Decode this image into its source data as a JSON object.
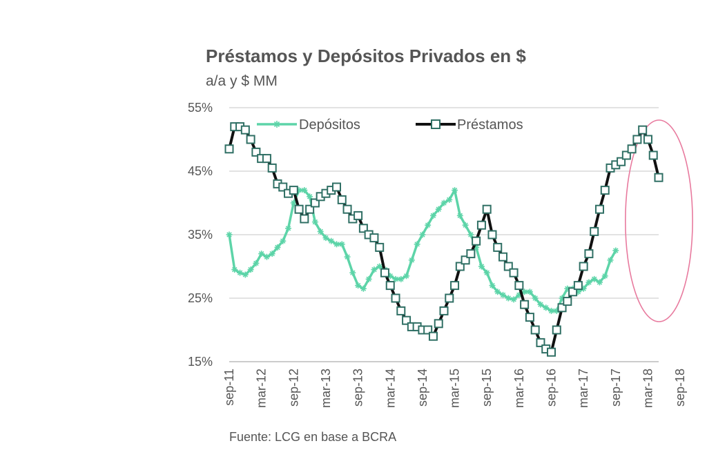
{
  "chart_data": {
    "type": "line",
    "title": "Préstamos y Depósitos Privados en $",
    "subtitle": "a/a  y $ MM",
    "source": "Fuente: LCG en base a BCRA",
    "ylim": [
      15,
      55
    ],
    "yticks": [
      15,
      25,
      35,
      45,
      55
    ],
    "ytick_labels": [
      "15%",
      "25%",
      "35%",
      "45%",
      "55%"
    ],
    "x_tick_labels": [
      "sep-11",
      "mar-12",
      "sep-12",
      "mar-13",
      "sep-13",
      "mar-14",
      "sep-14",
      "mar-15",
      "sep-15",
      "mar-16",
      "sep-16",
      "mar-17",
      "sep-17",
      "mar-18",
      "sep-18"
    ],
    "x_tick_every": 6,
    "grid": true,
    "legend_position": "top-left",
    "highlight": {
      "shape": "ellipse",
      "from": "sep-17",
      "to": "sep-18",
      "color": "#e87a9e"
    },
    "series": [
      {
        "name": "Depósitos",
        "color": "#5dd4a8",
        "marker": "asterisk",
        "values": [
          35,
          29.5,
          29,
          28.7,
          29.5,
          30.5,
          32,
          31.5,
          32,
          33,
          34,
          36,
          40,
          42,
          42,
          41,
          37,
          35.5,
          34.5,
          34,
          33.5,
          33.5,
          31.5,
          29,
          27,
          26.5,
          28,
          29.5,
          30,
          29.5,
          28.5,
          28,
          28,
          28.5,
          31,
          33.5,
          35,
          36.5,
          38,
          39,
          40,
          40.5,
          42,
          38,
          36.5,
          35,
          33,
          30,
          29,
          27,
          26,
          25.5,
          25,
          24.8,
          25.5,
          26,
          26,
          25,
          24,
          23.5,
          23,
          23,
          25,
          26.5,
          26.5,
          26,
          26.5,
          27.5,
          28,
          27.5,
          28.5,
          31,
          32.5
        ]
      },
      {
        "name": "Préstamos",
        "color": "#111111",
        "marker": "square",
        "marker_color": "#2f6f64",
        "values": [
          48.5,
          52,
          52,
          51.5,
          50,
          48,
          47,
          47,
          45.5,
          43,
          42.5,
          41.5,
          42,
          39,
          37.5,
          39,
          40,
          41,
          41.5,
          42,
          42.5,
          40.5,
          39,
          37.5,
          38,
          36,
          35,
          34.5,
          33,
          29,
          27,
          25,
          23,
          21.5,
          20.5,
          20.5,
          20,
          20,
          19,
          21,
          23,
          25,
          27,
          30,
          31,
          32,
          34,
          36.5,
          39,
          35,
          33,
          31.5,
          30,
          29,
          27,
          24,
          22,
          20,
          18,
          17,
          16.5,
          20,
          23.5,
          24.5,
          26,
          27,
          30,
          32,
          35.5,
          39,
          42,
          45.5,
          46,
          46.5,
          47.5,
          48.5,
          50,
          51.5,
          50,
          47.5,
          44
        ]
      }
    ]
  }
}
